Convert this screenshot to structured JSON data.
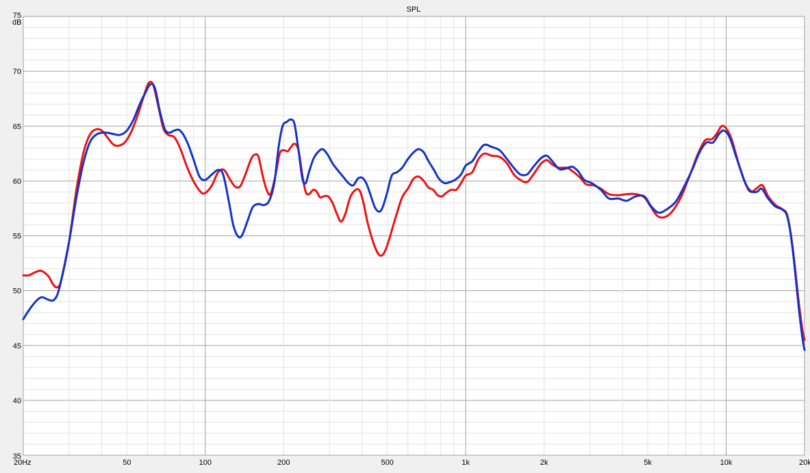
{
  "chart_data": {
    "type": "line",
    "title": "SPL",
    "ylabel": "dB",
    "xlabel": "",
    "xscale": "log",
    "xlim": [
      20,
      20000
    ],
    "ylim": [
      35,
      75
    ],
    "grid": true,
    "y_ticks": [
      {
        "value": 35,
        "label": "35"
      },
      {
        "value": 40,
        "label": "40"
      },
      {
        "value": 45,
        "label": "45"
      },
      {
        "value": 50,
        "label": "50"
      },
      {
        "value": 55,
        "label": "55"
      },
      {
        "value": 60,
        "label": "60"
      },
      {
        "value": 65,
        "label": "65"
      },
      {
        "value": 70,
        "label": "70"
      },
      {
        "value": 75,
        "label": "75"
      }
    ],
    "x_ticks": [
      {
        "value": 20,
        "label": "20Hz"
      },
      {
        "value": 50,
        "label": "50"
      },
      {
        "value": 100,
        "label": "100"
      },
      {
        "value": 200,
        "label": "200"
      },
      {
        "value": 500,
        "label": "500"
      },
      {
        "value": 1000,
        "label": "1k"
      },
      {
        "value": 2000,
        "label": "2k"
      },
      {
        "value": 5000,
        "label": "5k"
      },
      {
        "value": 10000,
        "label": "10k"
      },
      {
        "value": 20000,
        "label": "20k"
      }
    ],
    "series": [
      {
        "color": "#ee1111",
        "points": [
          [
            20,
            51.4
          ],
          [
            21,
            51.4
          ],
          [
            22.3,
            51.7
          ],
          [
            23.5,
            51.8
          ],
          [
            25,
            51.3
          ],
          [
            26,
            50.6
          ],
          [
            27,
            50.3
          ],
          [
            28,
            51
          ],
          [
            30,
            54.5
          ],
          [
            32,
            59.2
          ],
          [
            34,
            62.5
          ],
          [
            36,
            64.2
          ],
          [
            38,
            64.7
          ],
          [
            40,
            64.6
          ],
          [
            42,
            64
          ],
          [
            44,
            63.4
          ],
          [
            46,
            63.2
          ],
          [
            49,
            63.5
          ],
          [
            52,
            64.5
          ],
          [
            55,
            66
          ],
          [
            58,
            67.7
          ],
          [
            60.5,
            68.9
          ],
          [
            63,
            68.8
          ],
          [
            66,
            66.8
          ],
          [
            69,
            64.8
          ],
          [
            72,
            64.2
          ],
          [
            76,
            64
          ],
          [
            80,
            63
          ],
          [
            85,
            61.3
          ],
          [
            90,
            60
          ],
          [
            96,
            59
          ],
          [
            100,
            58.9
          ],
          [
            106,
            59.6
          ],
          [
            112,
            60.8
          ],
          [
            118,
            61
          ],
          [
            124,
            60.2
          ],
          [
            130,
            59.5
          ],
          [
            136,
            59.5
          ],
          [
            142,
            60.5
          ],
          [
            150,
            62
          ],
          [
            155,
            62.4
          ],
          [
            160,
            62.2
          ],
          [
            166,
            60.5
          ],
          [
            172,
            59.2
          ],
          [
            178,
            58.8
          ],
          [
            186,
            60.5
          ],
          [
            193,
            62.5
          ],
          [
            200,
            62.8
          ],
          [
            207,
            62.7
          ],
          [
            212,
            63
          ],
          [
            220,
            63.4
          ],
          [
            228,
            62.8
          ],
          [
            236,
            60.5
          ],
          [
            243,
            59
          ],
          [
            250,
            58.8
          ],
          [
            260,
            59.2
          ],
          [
            268,
            59
          ],
          [
            276,
            58.5
          ],
          [
            285,
            58.6
          ],
          [
            296,
            58.6
          ],
          [
            308,
            58
          ],
          [
            320,
            57
          ],
          [
            332,
            56.3
          ],
          [
            345,
            57
          ],
          [
            360,
            58.5
          ],
          [
            378,
            59.2
          ],
          [
            392,
            59.1
          ],
          [
            405,
            58
          ],
          [
            420,
            56.2
          ],
          [
            440,
            54.5
          ],
          [
            460,
            53.4
          ],
          [
            475,
            53.2
          ],
          [
            490,
            53.6
          ],
          [
            510,
            54.8
          ],
          [
            540,
            56.8
          ],
          [
            570,
            58.5
          ],
          [
            600,
            59.3
          ],
          [
            630,
            60.2
          ],
          [
            660,
            60.4
          ],
          [
            690,
            60
          ],
          [
            720,
            59.4
          ],
          [
            750,
            59.2
          ],
          [
            780,
            58.7
          ],
          [
            810,
            58.6
          ],
          [
            840,
            58.9
          ],
          [
            880,
            59.2
          ],
          [
            920,
            59.2
          ],
          [
            960,
            59.8
          ],
          [
            1000,
            60.5
          ],
          [
            1060,
            60.8
          ],
          [
            1120,
            62
          ],
          [
            1180,
            62.5
          ],
          [
            1260,
            62.3
          ],
          [
            1350,
            62.2
          ],
          [
            1440,
            61.6
          ],
          [
            1530,
            60.6
          ],
          [
            1620,
            60.1
          ],
          [
            1720,
            59.9
          ],
          [
            1820,
            60.6
          ],
          [
            1950,
            61.6
          ],
          [
            2050,
            61.9
          ],
          [
            2150,
            61.5
          ],
          [
            2280,
            61.2
          ],
          [
            2450,
            61.2
          ],
          [
            2600,
            60.8
          ],
          [
            2750,
            60.3
          ],
          [
            2900,
            59.7
          ],
          [
            3100,
            59.6
          ],
          [
            3300,
            59.3
          ],
          [
            3550,
            58.8
          ],
          [
            3850,
            58.7
          ],
          [
            4150,
            58.8
          ],
          [
            4500,
            58.8
          ],
          [
            4850,
            58.5
          ],
          [
            5150,
            57.6
          ],
          [
            5450,
            56.8
          ],
          [
            5800,
            56.7
          ],
          [
            6200,
            57.2
          ],
          [
            6700,
            58.5
          ],
          [
            7250,
            60.5
          ],
          [
            7800,
            62.5
          ],
          [
            8300,
            63.7
          ],
          [
            8800,
            63.8
          ],
          [
            9200,
            64.3
          ],
          [
            9600,
            65
          ],
          [
            10000,
            64.8
          ],
          [
            10500,
            63.8
          ],
          [
            11200,
            61.5
          ],
          [
            12000,
            59.5
          ],
          [
            12500,
            59
          ],
          [
            13200,
            59.4
          ],
          [
            13800,
            59.6
          ],
          [
            14500,
            58.6
          ],
          [
            15500,
            57.8
          ],
          [
            16500,
            57.4
          ],
          [
            17200,
            56.8
          ],
          [
            18000,
            54
          ],
          [
            19000,
            49
          ],
          [
            19600,
            46.5
          ],
          [
            20000,
            45.5
          ]
        ]
      },
      {
        "color": "#1133cc",
        "points": [
          [
            20,
            47.4
          ],
          [
            21,
            48.2
          ],
          [
            22.3,
            49
          ],
          [
            23.5,
            49.4
          ],
          [
            24.8,
            49.2
          ],
          [
            26,
            49.1
          ],
          [
            27,
            49.6
          ],
          [
            28,
            51
          ],
          [
            30,
            54.5
          ],
          [
            32,
            58.5
          ],
          [
            34,
            61.6
          ],
          [
            36,
            63.5
          ],
          [
            38,
            64.2
          ],
          [
            40,
            64.4
          ],
          [
            42,
            64.4
          ],
          [
            44,
            64.3
          ],
          [
            47,
            64.2
          ],
          [
            50,
            64.6
          ],
          [
            53,
            65.6
          ],
          [
            56,
            67
          ],
          [
            59,
            68.1
          ],
          [
            61.5,
            68.8
          ],
          [
            64,
            68.5
          ],
          [
            67,
            66.3
          ],
          [
            70,
            64.7
          ],
          [
            73,
            64.4
          ],
          [
            76,
            64.6
          ],
          [
            80,
            64.6
          ],
          [
            85,
            63.6
          ],
          [
            90,
            62
          ],
          [
            95,
            60.4
          ],
          [
            100,
            60.1
          ],
          [
            106,
            60.6
          ],
          [
            112,
            61
          ],
          [
            117,
            60.6
          ],
          [
            123,
            58.2
          ],
          [
            128,
            56
          ],
          [
            133,
            55
          ],
          [
            138,
            55
          ],
          [
            145,
            56.3
          ],
          [
            152,
            57.6
          ],
          [
            160,
            57.9
          ],
          [
            168,
            57.8
          ],
          [
            176,
            58.2
          ],
          [
            184,
            59.8
          ],
          [
            191,
            63
          ],
          [
            198,
            65
          ],
          [
            206,
            65.4
          ],
          [
            213,
            65.6
          ],
          [
            220,
            65.2
          ],
          [
            228,
            62.8
          ],
          [
            236,
            60.2
          ],
          [
            243,
            59.8
          ],
          [
            250,
            60.8
          ],
          [
            260,
            62
          ],
          [
            270,
            62.6
          ],
          [
            282,
            62.9
          ],
          [
            295,
            62.4
          ],
          [
            308,
            61.6
          ],
          [
            322,
            61
          ],
          [
            338,
            60.4
          ],
          [
            355,
            59.8
          ],
          [
            370,
            59.6
          ],
          [
            385,
            60.2
          ],
          [
            400,
            60.3
          ],
          [
            415,
            59.8
          ],
          [
            430,
            58.8
          ],
          [
            448,
            57.6
          ],
          [
            465,
            57.2
          ],
          [
            480,
            57.6
          ],
          [
            500,
            59
          ],
          [
            520,
            60.5
          ],
          [
            545,
            60.8
          ],
          [
            570,
            61.2
          ],
          [
            600,
            62
          ],
          [
            630,
            62.6
          ],
          [
            660,
            62.9
          ],
          [
            690,
            62.6
          ],
          [
            720,
            61.8
          ],
          [
            755,
            61
          ],
          [
            790,
            60.2
          ],
          [
            830,
            59.8
          ],
          [
            870,
            59.9
          ],
          [
            910,
            60.1
          ],
          [
            960,
            60.6
          ],
          [
            1000,
            61.4
          ],
          [
            1060,
            61.8
          ],
          [
            1120,
            62.7
          ],
          [
            1180,
            63.3
          ],
          [
            1260,
            63.1
          ],
          [
            1350,
            62.8
          ],
          [
            1440,
            62
          ],
          [
            1530,
            61.2
          ],
          [
            1620,
            60.6
          ],
          [
            1720,
            60.6
          ],
          [
            1820,
            61.3
          ],
          [
            1950,
            62.1
          ],
          [
            2050,
            62.3
          ],
          [
            2150,
            61.8
          ],
          [
            2280,
            61.1
          ],
          [
            2400,
            61.1
          ],
          [
            2560,
            61.3
          ],
          [
            2700,
            60.9
          ],
          [
            2850,
            60.1
          ],
          [
            3050,
            59.8
          ],
          [
            3300,
            59.2
          ],
          [
            3550,
            58.4
          ],
          [
            3850,
            58.4
          ],
          [
            4150,
            58.2
          ],
          [
            4500,
            58.6
          ],
          [
            4850,
            58.6
          ],
          [
            5150,
            57.7
          ],
          [
            5500,
            57.1
          ],
          [
            5900,
            57.4
          ],
          [
            6400,
            58.1
          ],
          [
            6900,
            59.5
          ],
          [
            7400,
            61
          ],
          [
            7900,
            62.6
          ],
          [
            8400,
            63.5
          ],
          [
            8900,
            63.5
          ],
          [
            9400,
            64.3
          ],
          [
            9800,
            64.6
          ],
          [
            10300,
            64
          ],
          [
            11000,
            62
          ],
          [
            11800,
            59.9
          ],
          [
            12400,
            59.1
          ],
          [
            13100,
            59
          ],
          [
            13700,
            59.3
          ],
          [
            14400,
            58.5
          ],
          [
            15400,
            57.7
          ],
          [
            16400,
            57.4
          ],
          [
            17200,
            56.7
          ],
          [
            18000,
            53.8
          ],
          [
            19000,
            48.5
          ],
          [
            19600,
            45.8
          ],
          [
            20000,
            44.6
          ]
        ]
      }
    ]
  }
}
